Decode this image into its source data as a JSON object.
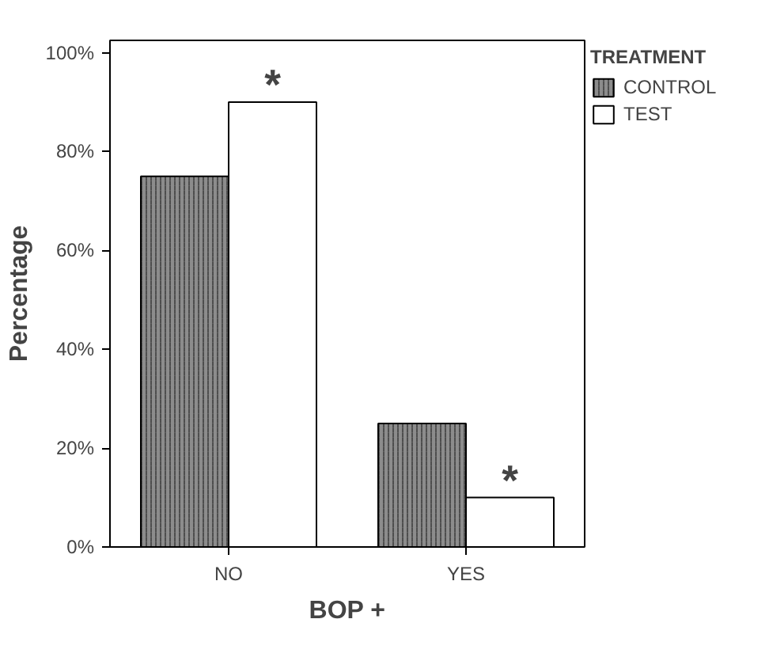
{
  "chart_data": {
    "type": "bar",
    "xlabel": "BOP +",
    "ylabel": "Percentage",
    "legend_title": "TREATMENT",
    "categories": [
      "NO",
      "YES"
    ],
    "series": [
      {
        "name": "CONTROL",
        "color": "#8c8c8c",
        "values": [
          75,
          25
        ]
      },
      {
        "name": "TEST",
        "color": "#ffffff",
        "values": [
          90,
          10
        ]
      }
    ],
    "ylim": [
      0,
      102.5
    ],
    "yticks": [
      {
        "value": 0,
        "label": "0%"
      },
      {
        "value": 20,
        "label": "20%"
      },
      {
        "value": 40,
        "label": "40%"
      },
      {
        "value": 60,
        "label": "60%"
      },
      {
        "value": 80,
        "label": "80%"
      },
      {
        "value": 100,
        "label": "100%"
      }
    ],
    "annotations": [
      {
        "text": "*",
        "x": "NO",
        "y": 90
      },
      {
        "text": "*",
        "x": "YES",
        "y": 10
      }
    ],
    "grid": false,
    "legend": "right"
  }
}
